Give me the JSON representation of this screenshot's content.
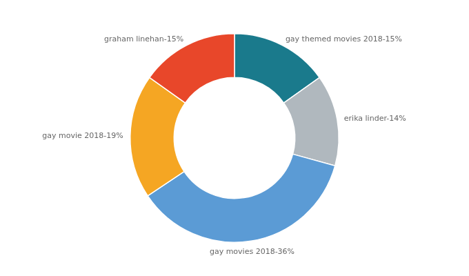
{
  "chart_data": {
    "type": "donut",
    "categories": [
      "gay themed movies 2018",
      "erika linder",
      "gay movies 2018",
      "gay movie 2018",
      "graham linehan"
    ],
    "values": [
      15,
      14,
      36,
      19,
      15
    ],
    "value_labels": [
      "gay themed movies 2018-15%",
      "erika linder-14%",
      "gay movies 2018-36%",
      "gay movie 2018-19%",
      "graham linehan-15%"
    ],
    "colors": [
      "#1A7A8C",
      "#B0B8BE",
      "#5B9BD5",
      "#F5A623",
      "#E8472A"
    ],
    "data_labels": true
  }
}
